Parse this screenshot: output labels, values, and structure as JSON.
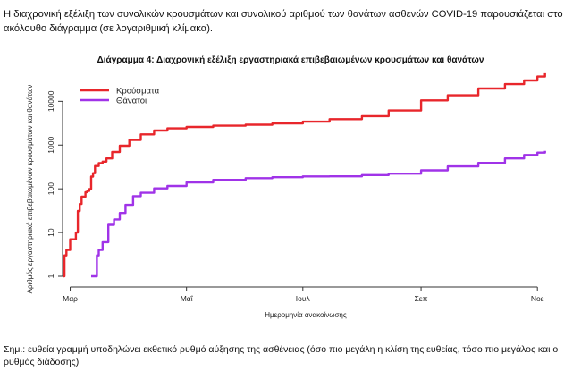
{
  "intro_text": "Η διαχρονική εξέλιξη των συνολικών κρουσμάτων και συνολικού αριθμού των θανάτων ασθενών COVID-19 παρουσιάζεται στο ακόλουθο διάγραμμα (σε λογαριθμική κλίμακα).",
  "note_text": "Σημ.: ευθεία γραμμή υποδηλώνει εκθετικό ρυθμό αύξησης της ασθένειας (όσο πιο μεγάλη η κλίση της ευθείας, τόσο πιο μεγάλος και ο ρυθμός διάδοσης)",
  "colors": {
    "cases": "#e8262b",
    "deaths": "#a033e8"
  },
  "chart_data": {
    "type": "line",
    "title": "Διάγραμμα 4: Διαχρονική εξέλιξη εργαστηριακά επιβεβαιωμένων κρουσμάτων και θανάτων",
    "xlabel": "Ημερομηνία ανακοίνωσης",
    "ylabel": "Αριθμός εργαστηριακά επιβεβαιωμένων κρουσμάτων και θανάτων",
    "yscale": "log",
    "ylim": [
      1,
      30000
    ],
    "xlim": [
      "2020-02-26",
      "2020-11-07"
    ],
    "x_ticks": [
      {
        "date": "2020-03-01",
        "label": "Μαρ"
      },
      {
        "date": "2020-05-01",
        "label": "Μαΐ"
      },
      {
        "date": "2020-07-01",
        "label": "Ιουλ"
      },
      {
        "date": "2020-09-01",
        "label": "Σεπ"
      },
      {
        "date": "2020-11-01",
        "label": "Νοε"
      }
    ],
    "y_ticks": [
      {
        "value": 1,
        "label": "1"
      },
      {
        "value": 10,
        "label": "10"
      },
      {
        "value": 100,
        "label": "100"
      },
      {
        "value": 1000,
        "label": "1000"
      },
      {
        "value": 10000,
        "label": "10000"
      }
    ],
    "grid": false,
    "legend_position": "top-left",
    "series": [
      {
        "name": "Κρούσματα",
        "color": "#e8262b",
        "points": [
          [
            "2020-02-26",
            1
          ],
          [
            "2020-02-27",
            3
          ],
          [
            "2020-02-28",
            4
          ],
          [
            "2020-02-29",
            4
          ],
          [
            "2020-03-01",
            7
          ],
          [
            "2020-03-03",
            7
          ],
          [
            "2020-03-04",
            10
          ],
          [
            "2020-03-05",
            31
          ],
          [
            "2020-03-06",
            45
          ],
          [
            "2020-03-07",
            66
          ],
          [
            "2020-03-09",
            84
          ],
          [
            "2020-03-10",
            89
          ],
          [
            "2020-03-11",
            99
          ],
          [
            "2020-03-12",
            190
          ],
          [
            "2020-03-13",
            228
          ],
          [
            "2020-03-14",
            331
          ],
          [
            "2020-03-16",
            387
          ],
          [
            "2020-03-18",
            418
          ],
          [
            "2020-03-20",
            495
          ],
          [
            "2020-03-23",
            695
          ],
          [
            "2020-03-27",
            966
          ],
          [
            "2020-04-01",
            1314
          ],
          [
            "2020-04-07",
            1755
          ],
          [
            "2020-04-14",
            2145
          ],
          [
            "2020-04-21",
            2401
          ],
          [
            "2020-05-01",
            2591
          ],
          [
            "2020-05-15",
            2770
          ],
          [
            "2020-06-01",
            2918
          ],
          [
            "2020-06-15",
            3121
          ],
          [
            "2020-07-01",
            3432
          ],
          [
            "2020-07-15",
            3910
          ],
          [
            "2020-08-01",
            4587
          ],
          [
            "2020-08-15",
            6177
          ],
          [
            "2020-09-01",
            10524
          ],
          [
            "2020-09-15",
            13730
          ],
          [
            "2020-10-01",
            19613
          ],
          [
            "2020-10-15",
            24742
          ],
          [
            "2020-10-25",
            29992
          ],
          [
            "2020-11-01",
            36856
          ],
          [
            "2020-11-05",
            44000
          ]
        ]
      },
      {
        "name": "Θάνατοι",
        "color": "#a033e8",
        "points": [
          [
            "2020-03-12",
            1
          ],
          [
            "2020-03-14",
            1
          ],
          [
            "2020-03-15",
            3
          ],
          [
            "2020-03-16",
            4
          ],
          [
            "2020-03-17",
            4
          ],
          [
            "2020-03-18",
            6
          ],
          [
            "2020-03-20",
            6
          ],
          [
            "2020-03-21",
            15
          ],
          [
            "2020-03-24",
            20
          ],
          [
            "2020-03-27",
            28
          ],
          [
            "2020-03-30",
            43
          ],
          [
            "2020-04-03",
            68
          ],
          [
            "2020-04-07",
            81
          ],
          [
            "2020-04-14",
            102
          ],
          [
            "2020-04-21",
            116
          ],
          [
            "2020-05-01",
            140
          ],
          [
            "2020-05-15",
            160
          ],
          [
            "2020-06-01",
            175
          ],
          [
            "2020-06-15",
            184
          ],
          [
            "2020-07-01",
            192
          ],
          [
            "2020-07-15",
            193
          ],
          [
            "2020-08-01",
            206
          ],
          [
            "2020-08-15",
            222
          ],
          [
            "2020-09-01",
            264
          ],
          [
            "2020-09-15",
            326
          ],
          [
            "2020-10-01",
            391
          ],
          [
            "2020-10-15",
            495
          ],
          [
            "2020-10-25",
            594
          ],
          [
            "2020-11-01",
            673
          ],
          [
            "2020-11-05",
            740
          ]
        ]
      }
    ]
  }
}
